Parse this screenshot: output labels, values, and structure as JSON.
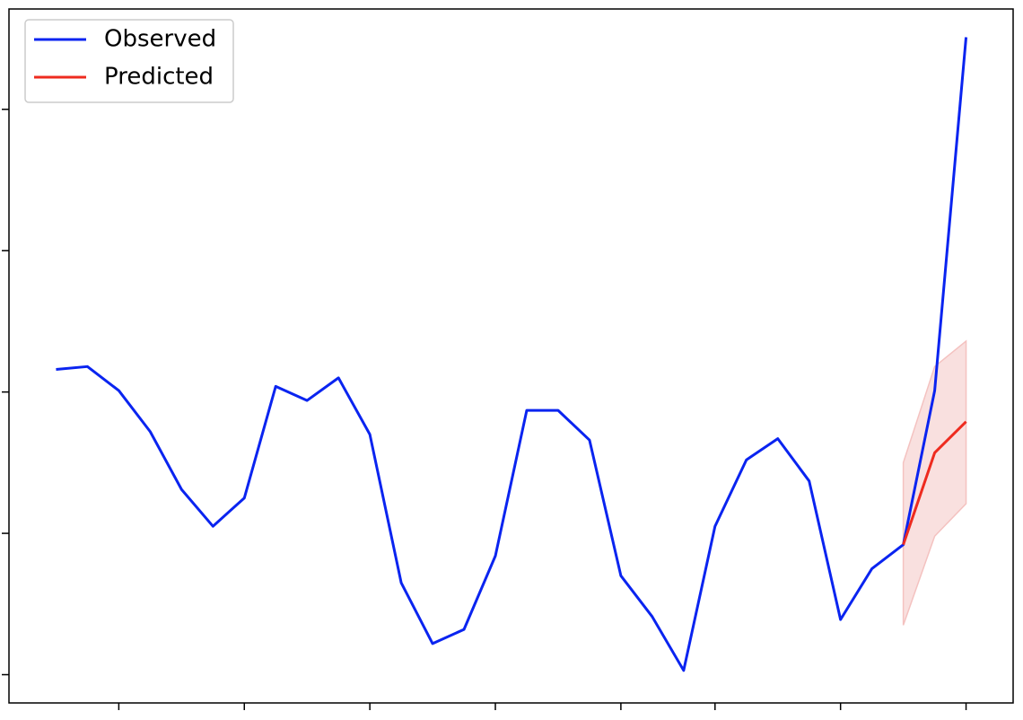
{
  "chart_data": {
    "type": "line",
    "series": [
      {
        "name": "Observed",
        "color": "#0a24f0",
        "x": [
          0,
          1,
          2,
          3,
          4,
          5,
          6,
          7,
          8,
          9,
          10,
          11,
          12,
          13,
          14,
          15,
          16,
          17,
          18,
          19,
          20,
          21,
          22,
          23,
          24,
          25,
          26,
          27,
          28,
          29
        ],
        "values": [
          2.16,
          2.18,
          2.01,
          1.72,
          1.31,
          1.05,
          1.25,
          2.04,
          1.94,
          2.1,
          1.7,
          0.65,
          0.22,
          0.32,
          0.84,
          1.87,
          1.87,
          1.66,
          0.7,
          0.41,
          0.03,
          1.05,
          1.52,
          1.67,
          1.37,
          0.39,
          0.75,
          0.92,
          2.01,
          4.51
        ]
      },
      {
        "name": "Predicted",
        "color": "#ee2b1f",
        "x": [
          27,
          28,
          29
        ],
        "values": [
          0.92,
          1.57,
          1.79
        ],
        "lower": [
          0.35,
          0.98,
          1.21
        ],
        "upper": [
          1.5,
          2.18,
          2.36
        ],
        "band_color": "#f4c2c0"
      }
    ],
    "xlim": [
      -1.5,
      30.5
    ],
    "ylim": [
      -0.2,
      4.71
    ],
    "xticks": [
      2,
      6,
      10,
      14,
      18,
      21,
      25,
      29
    ],
    "yticks": [
      0,
      1,
      2,
      3,
      4
    ],
    "legend": "upper-left"
  }
}
